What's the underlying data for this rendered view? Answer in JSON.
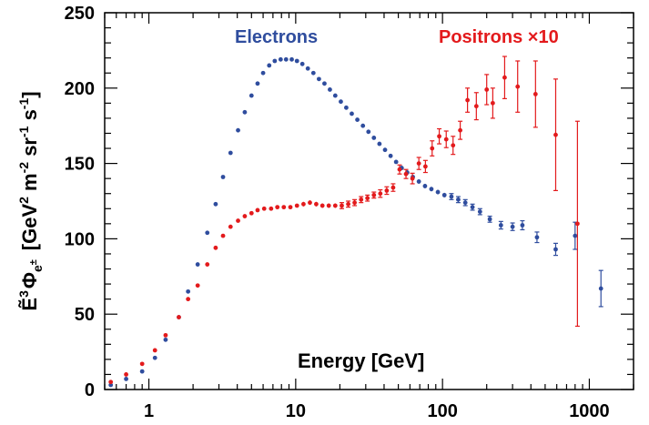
{
  "chart_data": {
    "type": "scatter",
    "xscale": "log",
    "xlim": [
      0.5,
      2000
    ],
    "ylim": [
      0,
      250
    ],
    "xlabel": "Energy [GeV]",
    "ylabel": {
      "base": "Ẽ",
      "base_sup": "3",
      "phi": "Φ",
      "phi_sub": "e",
      "phi_subsup": "±",
      "units": "[GeV",
      "units_sup1": "2",
      "units_mid1": " m",
      "units_sup2": "-2",
      "units_mid2": " sr",
      "units_sup3": "-1",
      "units_mid3": " s",
      "units_sup4": "-1",
      "units_end": "]"
    },
    "x_ticks": [
      1,
      10,
      100,
      1000
    ],
    "x_tick_labels": [
      "1",
      "10",
      "100",
      "1000"
    ],
    "y_ticks": [
      0,
      50,
      100,
      150,
      200,
      250
    ],
    "y_tick_labels": [
      "0",
      "50",
      "100",
      "150",
      "200",
      "250"
    ],
    "series": [
      {
        "name": "Electrons",
        "legend_label": "Electrons",
        "color": "#2f4d9e",
        "points": [
          {
            "x": 0.55,
            "y": 3,
            "err": 1
          },
          {
            "x": 0.7,
            "y": 7,
            "err": 1
          },
          {
            "x": 0.9,
            "y": 12,
            "err": 1
          },
          {
            "x": 1.1,
            "y": 21,
            "err": 1
          },
          {
            "x": 1.3,
            "y": 33,
            "err": 1
          },
          {
            "x": 1.6,
            "y": 48,
            "err": 1
          },
          {
            "x": 1.85,
            "y": 65,
            "err": 1
          },
          {
            "x": 2.15,
            "y": 83,
            "err": 1
          },
          {
            "x": 2.5,
            "y": 104,
            "err": 1
          },
          {
            "x": 2.85,
            "y": 123,
            "err": 1
          },
          {
            "x": 3.2,
            "y": 141,
            "err": 1
          },
          {
            "x": 3.6,
            "y": 157,
            "err": 1
          },
          {
            "x": 4.05,
            "y": 172,
            "err": 1
          },
          {
            "x": 4.5,
            "y": 184,
            "err": 1
          },
          {
            "x": 5.0,
            "y": 195,
            "err": 1
          },
          {
            "x": 5.5,
            "y": 203,
            "err": 1
          },
          {
            "x": 6.0,
            "y": 210,
            "err": 1
          },
          {
            "x": 6.6,
            "y": 215,
            "err": 1
          },
          {
            "x": 7.2,
            "y": 218,
            "err": 1
          },
          {
            "x": 7.9,
            "y": 219,
            "err": 1
          },
          {
            "x": 8.6,
            "y": 219,
            "err": 1
          },
          {
            "x": 9.4,
            "y": 219,
            "err": 1
          },
          {
            "x": 10.2,
            "y": 218,
            "err": 1
          },
          {
            "x": 11.1,
            "y": 216,
            "err": 1
          },
          {
            "x": 12.1,
            "y": 213,
            "err": 1
          },
          {
            "x": 13.2,
            "y": 210,
            "err": 1
          },
          {
            "x": 14.4,
            "y": 206,
            "err": 1
          },
          {
            "x": 15.7,
            "y": 203,
            "err": 1
          },
          {
            "x": 17.1,
            "y": 199,
            "err": 1
          },
          {
            "x": 18.6,
            "y": 195,
            "err": 1
          },
          {
            "x": 20.3,
            "y": 191,
            "err": 1
          },
          {
            "x": 22.1,
            "y": 187,
            "err": 1
          },
          {
            "x": 24.1,
            "y": 183,
            "err": 1
          },
          {
            "x": 26.3,
            "y": 179,
            "err": 1
          },
          {
            "x": 28.7,
            "y": 175,
            "err": 1
          },
          {
            "x": 31.3,
            "y": 171,
            "err": 1
          },
          {
            "x": 34.1,
            "y": 167,
            "err": 1
          },
          {
            "x": 37.2,
            "y": 163,
            "err": 1
          },
          {
            "x": 40.6,
            "y": 159,
            "err": 1
          },
          {
            "x": 44.3,
            "y": 155,
            "err": 1
          },
          {
            "x": 48.3,
            "y": 151,
            "err": 1
          },
          {
            "x": 52.7,
            "y": 147,
            "err": 1.5
          },
          {
            "x": 57.5,
            "y": 144,
            "err": 1.5
          },
          {
            "x": 62.8,
            "y": 141,
            "err": 1.5
          },
          {
            "x": 69,
            "y": 138,
            "err": 1.5
          },
          {
            "x": 76,
            "y": 135,
            "err": 1.5
          },
          {
            "x": 84,
            "y": 133,
            "err": 1.5
          },
          {
            "x": 93,
            "y": 131,
            "err": 1.5
          },
          {
            "x": 103,
            "y": 129,
            "err": 1.5
          },
          {
            "x": 115,
            "y": 128,
            "err": 2
          },
          {
            "x": 128,
            "y": 126,
            "err": 2
          },
          {
            "x": 143,
            "y": 124,
            "err": 2
          },
          {
            "x": 160,
            "y": 121,
            "err": 2
          },
          {
            "x": 180,
            "y": 118,
            "err": 2
          },
          {
            "x": 210,
            "y": 113,
            "err": 2
          },
          {
            "x": 250,
            "y": 109,
            "err": 2.5
          },
          {
            "x": 300,
            "y": 108,
            "err": 2.5
          },
          {
            "x": 350,
            "y": 109,
            "err": 3
          },
          {
            "x": 440,
            "y": 101,
            "err": 3.5
          },
          {
            "x": 590,
            "y": 93,
            "err": 4
          },
          {
            "x": 800,
            "y": 102,
            "err": 9
          },
          {
            "x": 1200,
            "y": 67,
            "err": 12
          }
        ]
      },
      {
        "name": "Positrons ×10",
        "legend_label": "Positrons ×10",
        "color": "#e31a1c",
        "points": [
          {
            "x": 0.55,
            "y": 5,
            "err": 1
          },
          {
            "x": 0.7,
            "y": 10,
            "err": 1
          },
          {
            "x": 0.9,
            "y": 17,
            "err": 1
          },
          {
            "x": 1.1,
            "y": 26,
            "err": 1
          },
          {
            "x": 1.3,
            "y": 36,
            "err": 1
          },
          {
            "x": 1.6,
            "y": 48,
            "err": 1
          },
          {
            "x": 1.85,
            "y": 60,
            "err": 1
          },
          {
            "x": 2.15,
            "y": 69,
            "err": 1
          },
          {
            "x": 2.5,
            "y": 83,
            "err": 1
          },
          {
            "x": 2.85,
            "y": 94,
            "err": 1
          },
          {
            "x": 3.2,
            "y": 102,
            "err": 1
          },
          {
            "x": 3.6,
            "y": 108,
            "err": 1
          },
          {
            "x": 4.05,
            "y": 112,
            "err": 1
          },
          {
            "x": 4.5,
            "y": 115,
            "err": 1
          },
          {
            "x": 5.0,
            "y": 117,
            "err": 1
          },
          {
            "x": 5.5,
            "y": 119,
            "err": 1
          },
          {
            "x": 6.1,
            "y": 120,
            "err": 1
          },
          {
            "x": 6.8,
            "y": 120,
            "err": 1
          },
          {
            "x": 7.5,
            "y": 121,
            "err": 1
          },
          {
            "x": 8.3,
            "y": 121,
            "err": 1
          },
          {
            "x": 9.2,
            "y": 121,
            "err": 1
          },
          {
            "x": 10.2,
            "y": 122,
            "err": 1
          },
          {
            "x": 11.3,
            "y": 123,
            "err": 1.5
          },
          {
            "x": 12.5,
            "y": 124,
            "err": 1.5
          },
          {
            "x": 13.8,
            "y": 123,
            "err": 1.5
          },
          {
            "x": 15.2,
            "y": 122,
            "err": 1.5
          },
          {
            "x": 16.8,
            "y": 122,
            "err": 1.5
          },
          {
            "x": 18.6,
            "y": 122,
            "err": 1.5
          },
          {
            "x": 20.6,
            "y": 122,
            "err": 2
          },
          {
            "x": 22.8,
            "y": 123,
            "err": 2
          },
          {
            "x": 25.2,
            "y": 124,
            "err": 2
          },
          {
            "x": 27.9,
            "y": 126,
            "err": 2
          },
          {
            "x": 30.8,
            "y": 127,
            "err": 2
          },
          {
            "x": 34.1,
            "y": 129,
            "err": 2
          },
          {
            "x": 37.7,
            "y": 130,
            "err": 2.5
          },
          {
            "x": 41.7,
            "y": 132,
            "err": 2.5
          },
          {
            "x": 46.1,
            "y": 134,
            "err": 2.5
          },
          {
            "x": 51,
            "y": 146,
            "err": 3
          },
          {
            "x": 56.4,
            "y": 143,
            "err": 3
          },
          {
            "x": 62.4,
            "y": 140,
            "err": 3.5
          },
          {
            "x": 69,
            "y": 150,
            "err": 4
          },
          {
            "x": 76.5,
            "y": 148,
            "err": 4
          },
          {
            "x": 85,
            "y": 160,
            "err": 5
          },
          {
            "x": 95,
            "y": 168,
            "err": 5
          },
          {
            "x": 106,
            "y": 166,
            "err": 5.5
          },
          {
            "x": 118,
            "y": 162,
            "err": 6
          },
          {
            "x": 132,
            "y": 172,
            "err": 6
          },
          {
            "x": 148,
            "y": 192,
            "err": 8
          },
          {
            "x": 170,
            "y": 188,
            "err": 9
          },
          {
            "x": 200,
            "y": 199,
            "err": 10
          },
          {
            "x": 220,
            "y": 190,
            "err": 10
          },
          {
            "x": 265,
            "y": 207,
            "err": 14
          },
          {
            "x": 325,
            "y": 201,
            "err": 17
          },
          {
            "x": 430,
            "y": 196,
            "err": 22
          },
          {
            "x": 590,
            "y": 169,
            "err": 37
          },
          {
            "x": 830,
            "y": 110,
            "err": 68
          }
        ]
      }
    ]
  }
}
